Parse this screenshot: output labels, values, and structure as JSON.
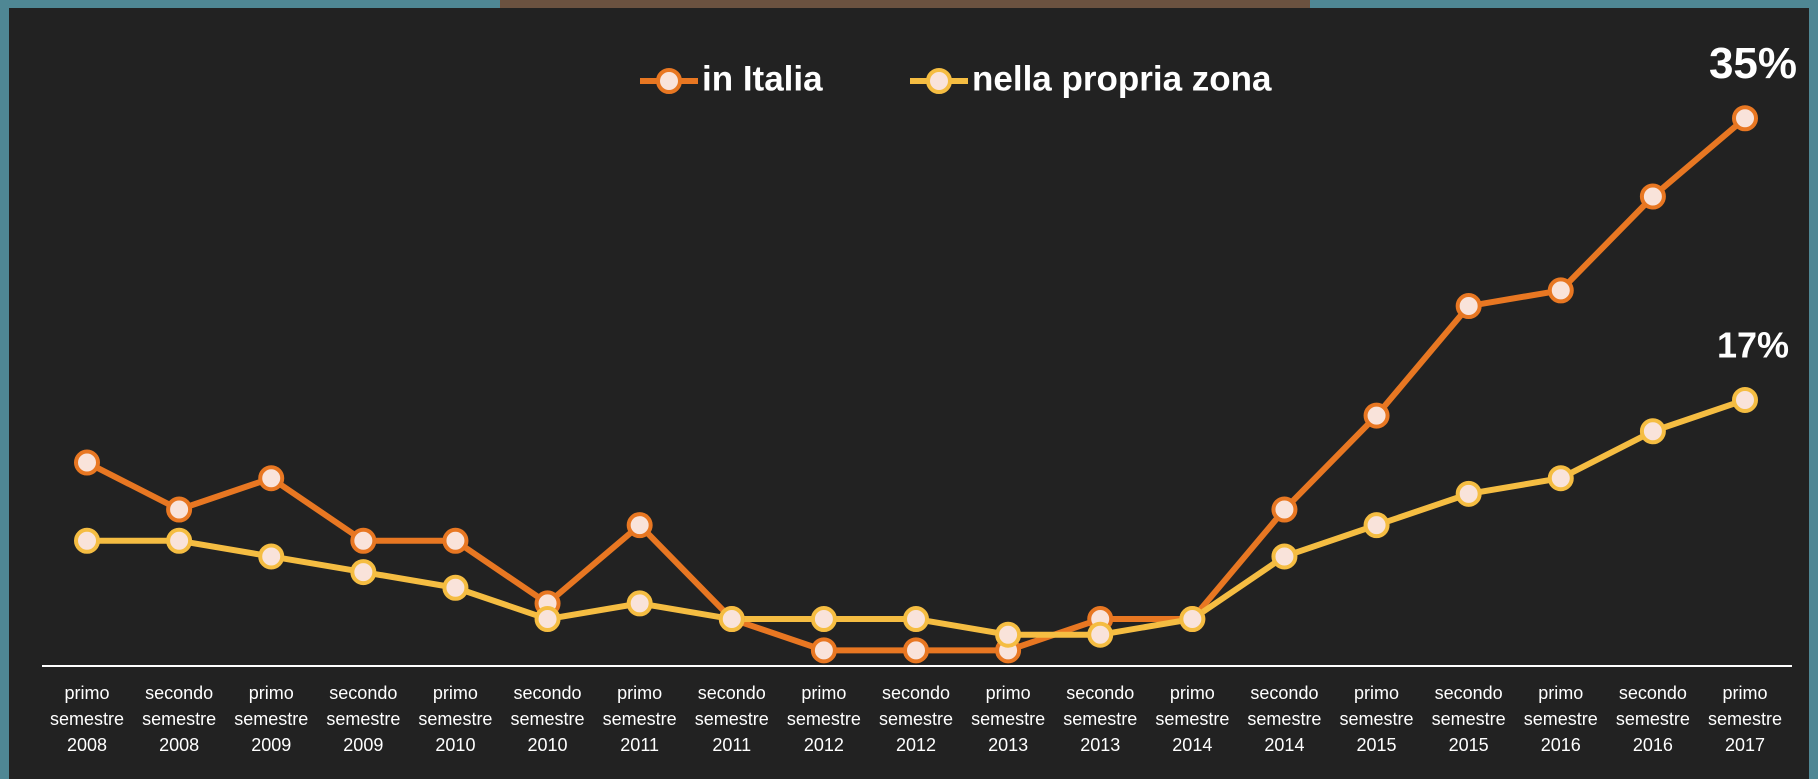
{
  "chart_data": {
    "type": "line",
    "categories": [
      "primo semestre 2008",
      "secondo semestre 2008",
      "primo semestre 2009",
      "secondo semestre 2009",
      "primo semestre 2010",
      "secondo semestre 2010",
      "primo semestre 2011",
      "secondo semestre 2011",
      "primo semestre 2012",
      "secondo semestre 2012",
      "primo semestre 2013",
      "secondo semestre 2013",
      "primo semestre 2014",
      "secondo semestre 2014",
      "primo semestre 2015",
      "secondo semestre 2015",
      "primo semestre 2016",
      "secondo semestre 2016",
      "primo semestre 2017"
    ],
    "series": [
      {
        "name": "in Italia",
        "color": "#e87722",
        "values": [
          13,
          10,
          12,
          8,
          8,
          4,
          9,
          3,
          1,
          1,
          1,
          3,
          3,
          10,
          16,
          23,
          24,
          30,
          35
        ],
        "value_labels": [
          null,
          null,
          null,
          null,
          null,
          null,
          null,
          null,
          null,
          null,
          null,
          null,
          null,
          null,
          null,
          null,
          null,
          null,
          "35%"
        ]
      },
      {
        "name": "nella propria zona",
        "color": "#f5bd42",
        "values": [
          8,
          8,
          7,
          6,
          5,
          3,
          4,
          3,
          3,
          3,
          2,
          2,
          3,
          7,
          9,
          11,
          12,
          15,
          17
        ],
        "value_labels": [
          null,
          null,
          null,
          null,
          null,
          null,
          null,
          null,
          null,
          null,
          null,
          null,
          null,
          null,
          null,
          null,
          null,
          null,
          "17%"
        ]
      }
    ],
    "ylim": [
      0,
      40
    ],
    "legend": "top"
  }
}
